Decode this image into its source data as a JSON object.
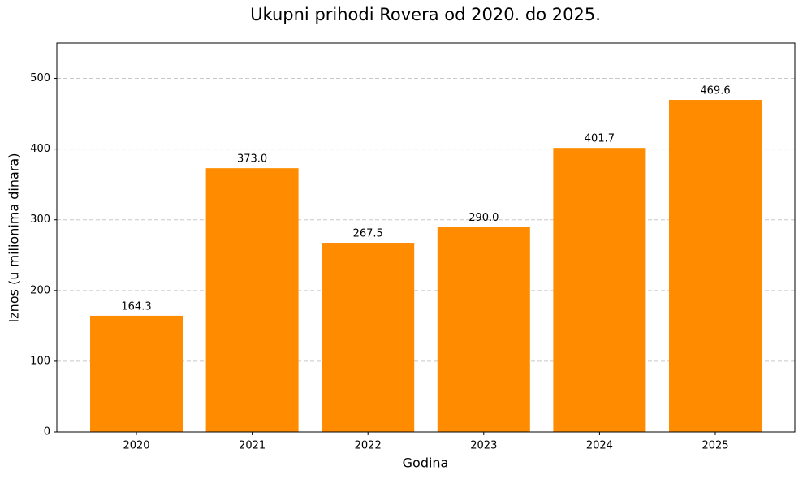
{
  "chart_data": {
    "type": "bar",
    "title": "Ukupni prihodi Rovera od 2020. do 2025.",
    "x_label": "Godina",
    "y_label": "Iznos (u milionima dinara)",
    "categories": [
      "2020",
      "2021",
      "2022",
      "2023",
      "2024",
      "2025"
    ],
    "values": [
      164.3,
      373.0,
      267.5,
      290.0,
      401.7,
      469.6
    ],
    "value_labels": [
      "164.3",
      "373.0",
      "267.5",
      "290.0",
      "401.7",
      "469.6"
    ],
    "color": "#ff8c00",
    "ylim": [
      0,
      550
    ],
    "yticks": [
      0,
      100,
      200,
      300,
      400,
      500
    ],
    "grid": true
  }
}
